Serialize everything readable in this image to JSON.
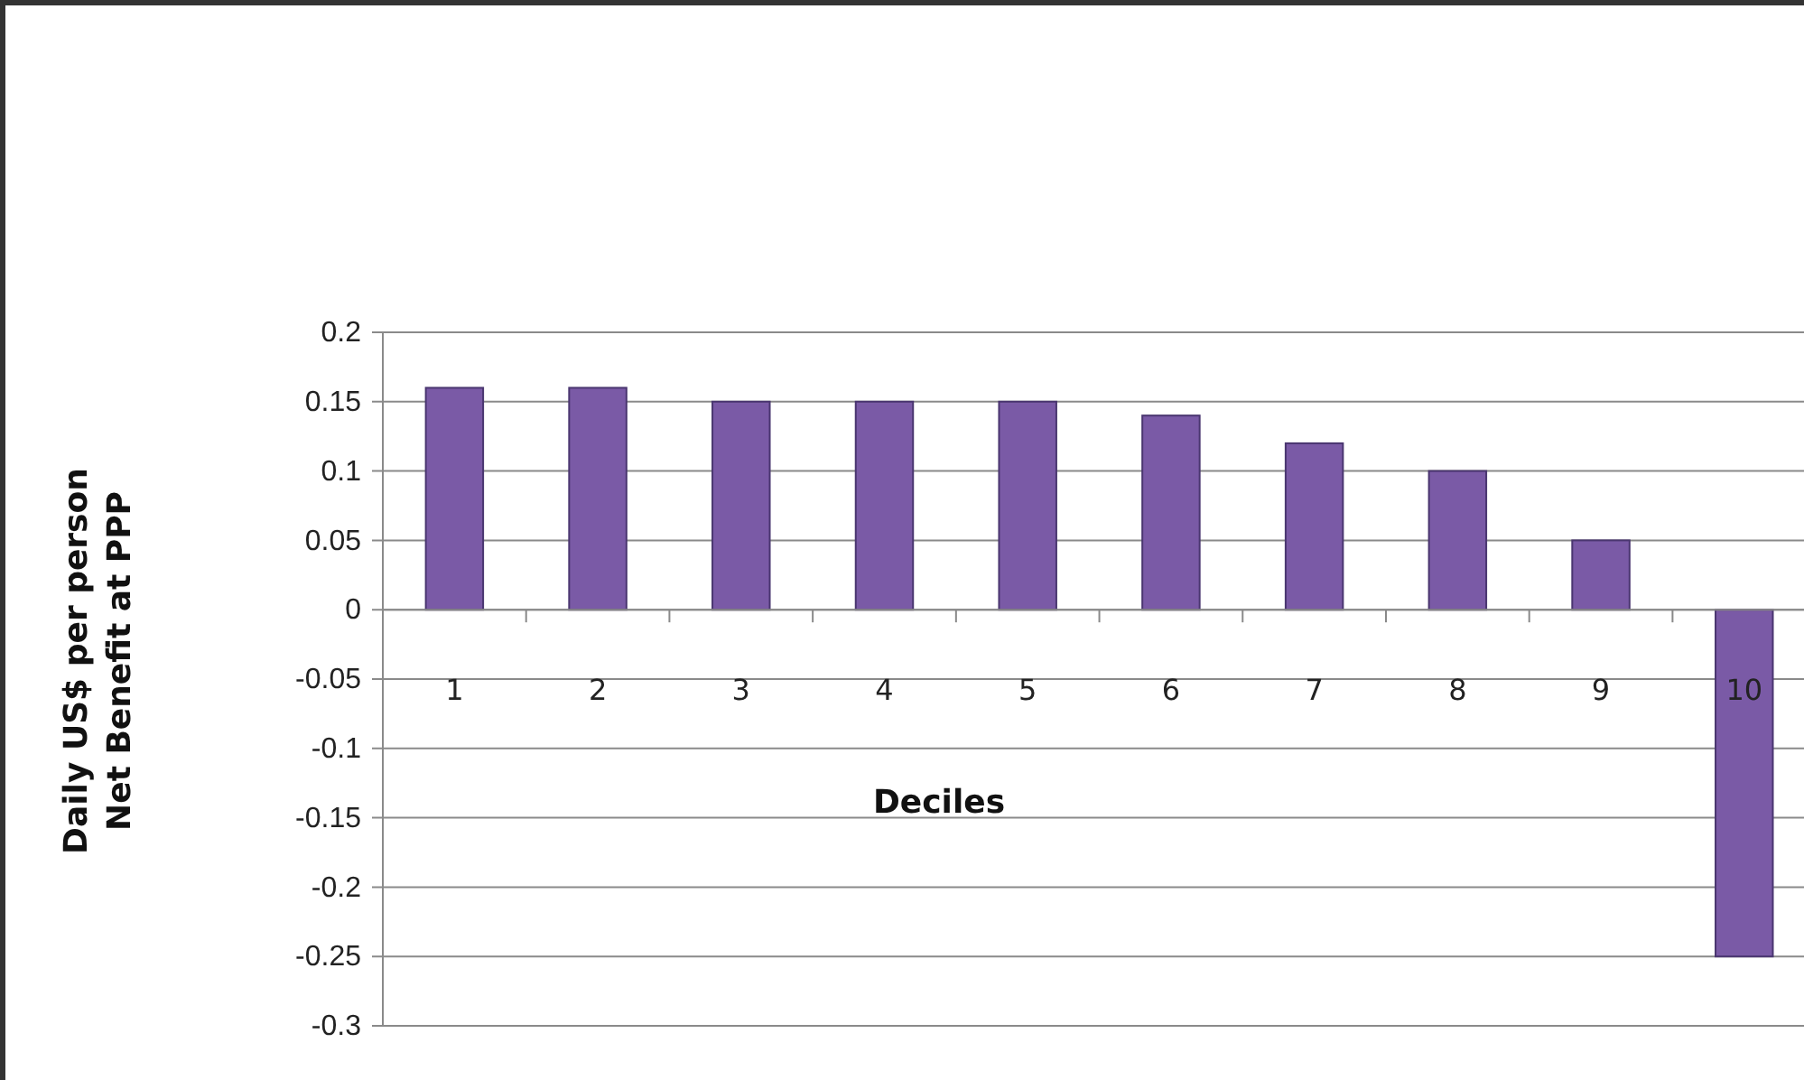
{
  "chart_data": {
    "type": "bar",
    "xlabel": "Deciles",
    "ylabel": "Daily US$ per person\nNet Benefit at PPP",
    "categories": [
      "1",
      "2",
      "3",
      "4",
      "5",
      "6",
      "7",
      "8",
      "9",
      "10"
    ],
    "values": [
      0.16,
      0.16,
      0.15,
      0.15,
      0.15,
      0.14,
      0.12,
      0.1,
      0.05,
      -0.25
    ],
    "color": "#7a5aa6",
    "ylim": [
      -0.3,
      0.2
    ],
    "yticks": [
      -0.3,
      -0.25,
      -0.2,
      -0.15,
      -0.1,
      -0.05,
      0,
      0.05,
      0.1,
      0.15,
      0.2
    ],
    "grid": "y"
  }
}
